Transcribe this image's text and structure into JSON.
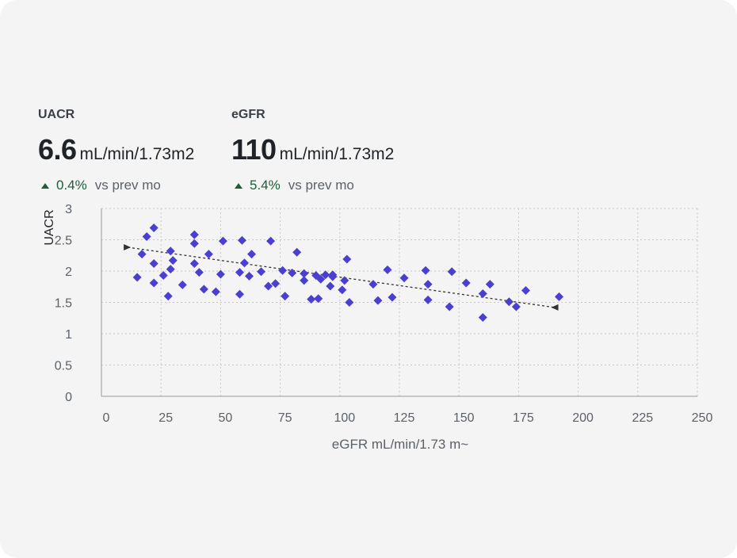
{
  "metrics": [
    {
      "label": "UACR",
      "value": "6.6",
      "unit": "mL/min/1.73m2",
      "delta": "0.4%",
      "comparison": "vs prev mo",
      "trend": "up"
    },
    {
      "label": "eGFR",
      "value": "110",
      "unit": "mL/min/1.73m2",
      "delta": "5.4%",
      "comparison": "vs prev mo",
      "trend": "up"
    }
  ],
  "colors": {
    "points": "#4a3fcf",
    "positive": "#1f5c3a",
    "grid": "#c8c8cc",
    "trend": "#333333"
  },
  "chart_data": {
    "type": "scatter",
    "xlabel": "eGFR mL/min/1.73 m~",
    "ylabel": "UACR",
    "xlim": [
      0,
      250
    ],
    "ylim": [
      0,
      3
    ],
    "xticks": [
      0,
      25,
      50,
      75,
      100,
      125,
      150,
      175,
      200,
      225,
      250
    ],
    "yticks": [
      0,
      0.5,
      1,
      1.5,
      2,
      2.5,
      3
    ],
    "ytick_labels": [
      "0",
      "0.5",
      "1",
      "1.5",
      "2",
      "2.5",
      "3"
    ],
    "grid": true,
    "points": [
      [
        15,
        1.9
      ],
      [
        17,
        2.27
      ],
      [
        19,
        2.55
      ],
      [
        22,
        2.69
      ],
      [
        22,
        2.12
      ],
      [
        22,
        1.81
      ],
      [
        26,
        1.93
      ],
      [
        28,
        1.6
      ],
      [
        29,
        2.03
      ],
      [
        29,
        2.32
      ],
      [
        30,
        2.17
      ],
      [
        34,
        1.78
      ],
      [
        39,
        2.12
      ],
      [
        39,
        2.44
      ],
      [
        39,
        2.58
      ],
      [
        41,
        1.98
      ],
      [
        43,
        1.71
      ],
      [
        45,
        2.27
      ],
      [
        48,
        1.67
      ],
      [
        50,
        1.95
      ],
      [
        51,
        2.48
      ],
      [
        58,
        1.98
      ],
      [
        58,
        1.63
      ],
      [
        59,
        2.49
      ],
      [
        60,
        2.13
      ],
      [
        62,
        1.92
      ],
      [
        63,
        2.27
      ],
      [
        67,
        1.99
      ],
      [
        70,
        1.76
      ],
      [
        71,
        2.48
      ],
      [
        73,
        1.8
      ],
      [
        76,
        2.01
      ],
      [
        77,
        1.6
      ],
      [
        80,
        1.97
      ],
      [
        82,
        2.3
      ],
      [
        85,
        1.85
      ],
      [
        85,
        1.96
      ],
      [
        88,
        1.55
      ],
      [
        90,
        1.93
      ],
      [
        91,
        1.56
      ],
      [
        92,
        1.87
      ],
      [
        94,
        1.94
      ],
      [
        96,
        1.76
      ],
      [
        97,
        1.94
      ],
      [
        97,
        1.91
      ],
      [
        101,
        1.7
      ],
      [
        102,
        1.85
      ],
      [
        103,
        2.19
      ],
      [
        104,
        1.5
      ],
      [
        114,
        1.79
      ],
      [
        116,
        1.53
      ],
      [
        120,
        2.02
      ],
      [
        122,
        1.58
      ],
      [
        127,
        1.89
      ],
      [
        136,
        2.01
      ],
      [
        137,
        1.79
      ],
      [
        137,
        1.54
      ],
      [
        146,
        1.43
      ],
      [
        147,
        1.99
      ],
      [
        153,
        1.81
      ],
      [
        160,
        1.26
      ],
      [
        160,
        1.64
      ],
      [
        163,
        1.79
      ],
      [
        171,
        1.51
      ],
      [
        174,
        1.43
      ],
      [
        178,
        1.69
      ],
      [
        192,
        1.59
      ]
    ],
    "trendline": {
      "x": [
        11,
        190
      ],
      "y": [
        2.38,
        1.42
      ]
    }
  }
}
